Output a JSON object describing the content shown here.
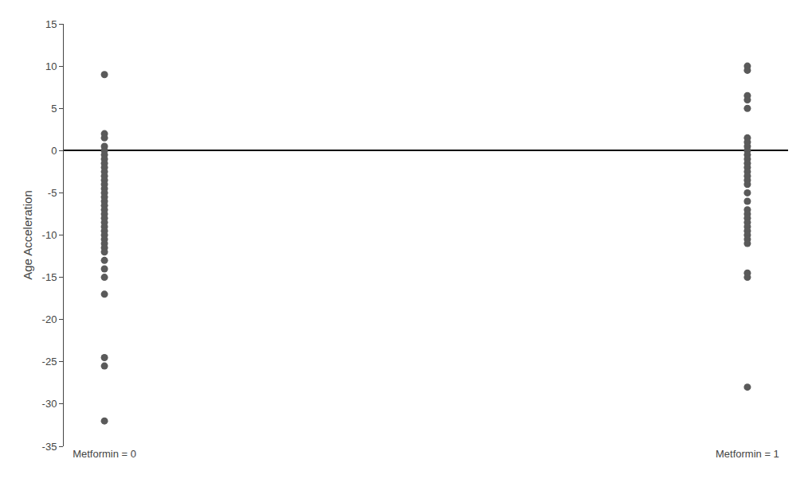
{
  "chart_data": {
    "type": "scatter",
    "categories": [
      "Metformin = 0",
      "Metformin = 1"
    ],
    "values": [
      [
        9.0,
        2.0,
        1.5,
        0.5,
        0.0,
        -0.5,
        -1.0,
        -1.5,
        -2.0,
        -2.5,
        -3.0,
        -3.5,
        -4.0,
        -4.5,
        -5.0,
        -5.5,
        -6.0,
        -6.5,
        -7.0,
        -7.5,
        -8.0,
        -8.5,
        -9.0,
        -9.5,
        -10.0,
        -10.5,
        -11.0,
        -11.5,
        -12.0,
        -13.0,
        -14.0,
        -15.0,
        -17.0,
        -24.5,
        -25.5,
        -32.0
      ],
      [
        10.0,
        9.5,
        6.5,
        6.0,
        5.0,
        1.5,
        1.0,
        0.5,
        0.0,
        -0.5,
        -1.0,
        -1.5,
        -2.0,
        -2.5,
        -3.0,
        -3.5,
        -4.0,
        -5.0,
        -6.0,
        -7.0,
        -7.5,
        -8.0,
        -8.5,
        -9.0,
        -9.5,
        -10.0,
        -10.5,
        -11.0,
        -14.5,
        -15.0,
        -28.0
      ]
    ],
    "ylabel": "Age Acceleration",
    "color": "#5a5a5a",
    "ylim": [
      -35,
      15
    ],
    "yticks": [
      15,
      10,
      5,
      0,
      -5,
      -10,
      -15,
      -20,
      -25,
      -30,
      -35
    ],
    "grid": false
  }
}
